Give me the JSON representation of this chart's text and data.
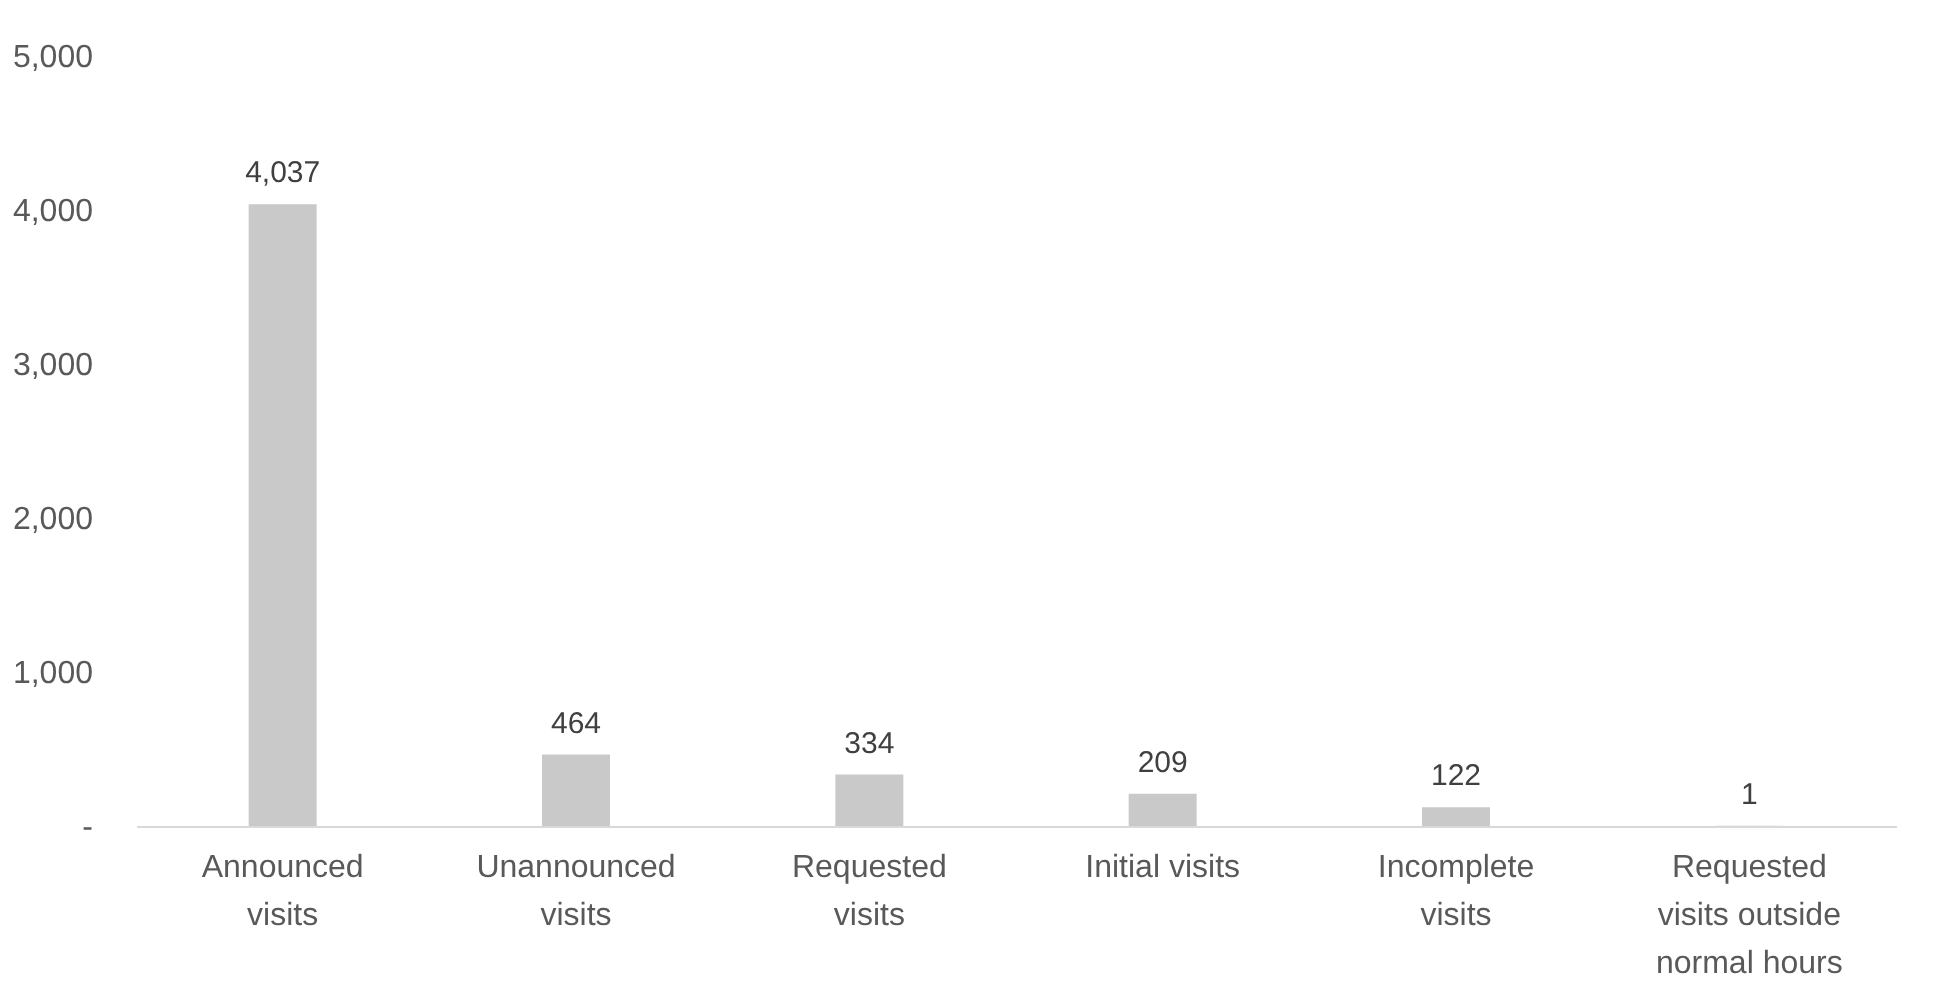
{
  "chart_data": {
    "type": "bar",
    "categories": [
      "Announced visits",
      "Unannounced visits",
      "Requested visits",
      "Initial visits",
      "Incomplete visits",
      "Requested visits outside normal hours"
    ],
    "values": [
      4037,
      464,
      334,
      209,
      122,
      1
    ],
    "color": "#c9c9c9",
    "ylim": [
      0,
      5000
    ],
    "yticks": [
      {
        "value": 0,
        "label": "-"
      },
      {
        "value": 1000,
        "label": "1,000"
      },
      {
        "value": 2000,
        "label": "2,000"
      },
      {
        "value": 3000,
        "label": "3,000"
      },
      {
        "value": 4000,
        "label": "4,000"
      },
      {
        "value": 5000,
        "label": "5,000"
      }
    ],
    "value_labels": [
      "4,037",
      "464",
      "334",
      "209",
      "122",
      "1"
    ],
    "grid": false
  }
}
